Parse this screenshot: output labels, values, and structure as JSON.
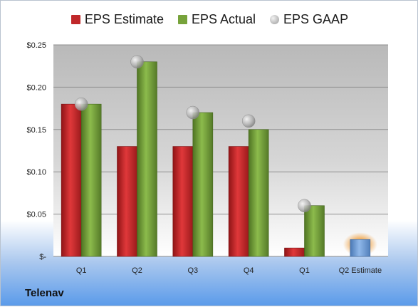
{
  "legend": {
    "estimate": "EPS Estimate",
    "actual": "EPS Actual",
    "gaap": "EPS GAAP"
  },
  "company": "Telenav",
  "colors": {
    "estimate": "#c0282a",
    "actual": "#77a33b",
    "gaap": "#a9a9a9",
    "forecast": "#6f9fd8",
    "forecast_glow": "#f0a040"
  },
  "chart_data": {
    "type": "bar",
    "categories": [
      "Q1",
      "Q2",
      "Q3",
      "Q4",
      "Q1",
      "Q2 Estimate"
    ],
    "series": [
      {
        "name": "EPS Estimate",
        "values": [
          0.18,
          0.13,
          0.13,
          0.13,
          0.01,
          0.02
        ]
      },
      {
        "name": "EPS Actual",
        "values": [
          0.18,
          0.23,
          0.17,
          0.15,
          0.06,
          null
        ]
      },
      {
        "name": "EPS GAAP",
        "values": [
          0.18,
          0.23,
          0.17,
          0.16,
          0.06,
          null
        ]
      }
    ],
    "y_ticks": [
      "$-",
      "$0.05",
      "$0.10",
      "$0.15",
      "$0.20",
      "$0.25"
    ],
    "ylim": [
      0,
      0.25
    ],
    "grid": true,
    "legend_position": "top"
  }
}
